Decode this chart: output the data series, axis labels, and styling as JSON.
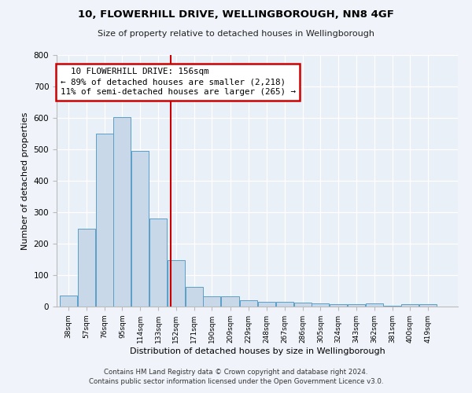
{
  "title1": "10, FLOWERHILL DRIVE, WELLINGBOROUGH, NN8 4GF",
  "title2": "Size of property relative to detached houses in Wellingborough",
  "xlabel": "Distribution of detached houses by size in Wellingborough",
  "ylabel": "Number of detached properties",
  "bin_labels": [
    "38sqm",
    "57sqm",
    "76sqm",
    "95sqm",
    "114sqm",
    "133sqm",
    "152sqm",
    "171sqm",
    "190sqm",
    "209sqm",
    "229sqm",
    "248sqm",
    "267sqm",
    "286sqm",
    "305sqm",
    "324sqm",
    "343sqm",
    "362sqm",
    "381sqm",
    "400sqm",
    "419sqm"
  ],
  "bin_edges": [
    38,
    57,
    76,
    95,
    114,
    133,
    152,
    171,
    190,
    209,
    229,
    248,
    267,
    286,
    305,
    324,
    343,
    362,
    381,
    400,
    419,
    438
  ],
  "bar_heights": [
    35,
    248,
    549,
    603,
    494,
    280,
    147,
    62,
    32,
    32,
    20,
    15,
    15,
    12,
    10,
    8,
    8,
    10,
    2,
    8,
    8
  ],
  "bar_color": "#c8d8e8",
  "bar_edgecolor": "#5a9fc8",
  "bg_color": "#eaf0f8",
  "grid_color": "#ffffff",
  "red_line_x": 156,
  "red_line_color": "#cc0000",
  "annotation_line1": "  10 FLOWERHILL DRIVE: 156sqm",
  "annotation_line2": "← 89% of detached houses are smaller (2,218)",
  "annotation_line3": "11% of semi-detached houses are larger (265) →",
  "annotation_box_color": "#cc0000",
  "ylim": [
    0,
    800
  ],
  "yticks": [
    0,
    100,
    200,
    300,
    400,
    500,
    600,
    700,
    800
  ],
  "footnote1": "Contains HM Land Registry data © Crown copyright and database right 2024.",
  "footnote2": "Contains public sector information licensed under the Open Government Licence v3.0."
}
